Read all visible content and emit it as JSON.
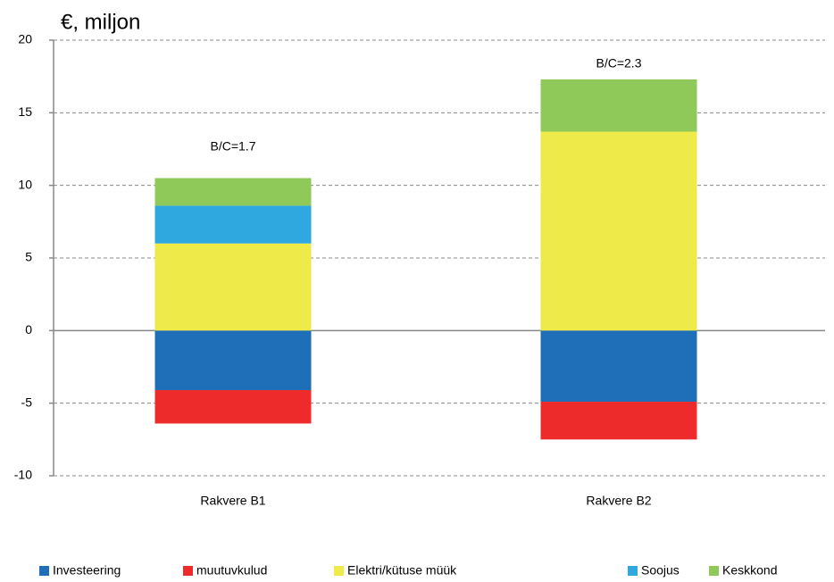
{
  "chart_data": {
    "type": "bar",
    "stacked": true,
    "ylabel": "€, miljon",
    "categories": [
      "Rakvere B1",
      "Rakvere B2"
    ],
    "series": [
      {
        "name": "Investeering",
        "color": "#1f6eb8",
        "values": [
          -4.1,
          -4.9
        ]
      },
      {
        "name": "muutuvkulud",
        "color": "#ee2b2b",
        "values": [
          -2.3,
          -2.6
        ]
      },
      {
        "name": "Elektri/kütuse müük",
        "color": "#eeea4a",
        "values": [
          6.0,
          13.7
        ]
      },
      {
        "name": "Soojus",
        "color": "#2fa8e0",
        "values": [
          2.6,
          0
        ]
      },
      {
        "name": "Keskkond",
        "color": "#8fc95a",
        "values": [
          1.9,
          3.6
        ]
      }
    ],
    "annotations": [
      "B/C=1.7",
      "B/C=2.3"
    ],
    "ylim": [
      -10,
      20
    ],
    "yticks": [
      -10,
      -5,
      0,
      5,
      10,
      15,
      20
    ],
    "grid": true,
    "legend": "bottom"
  }
}
